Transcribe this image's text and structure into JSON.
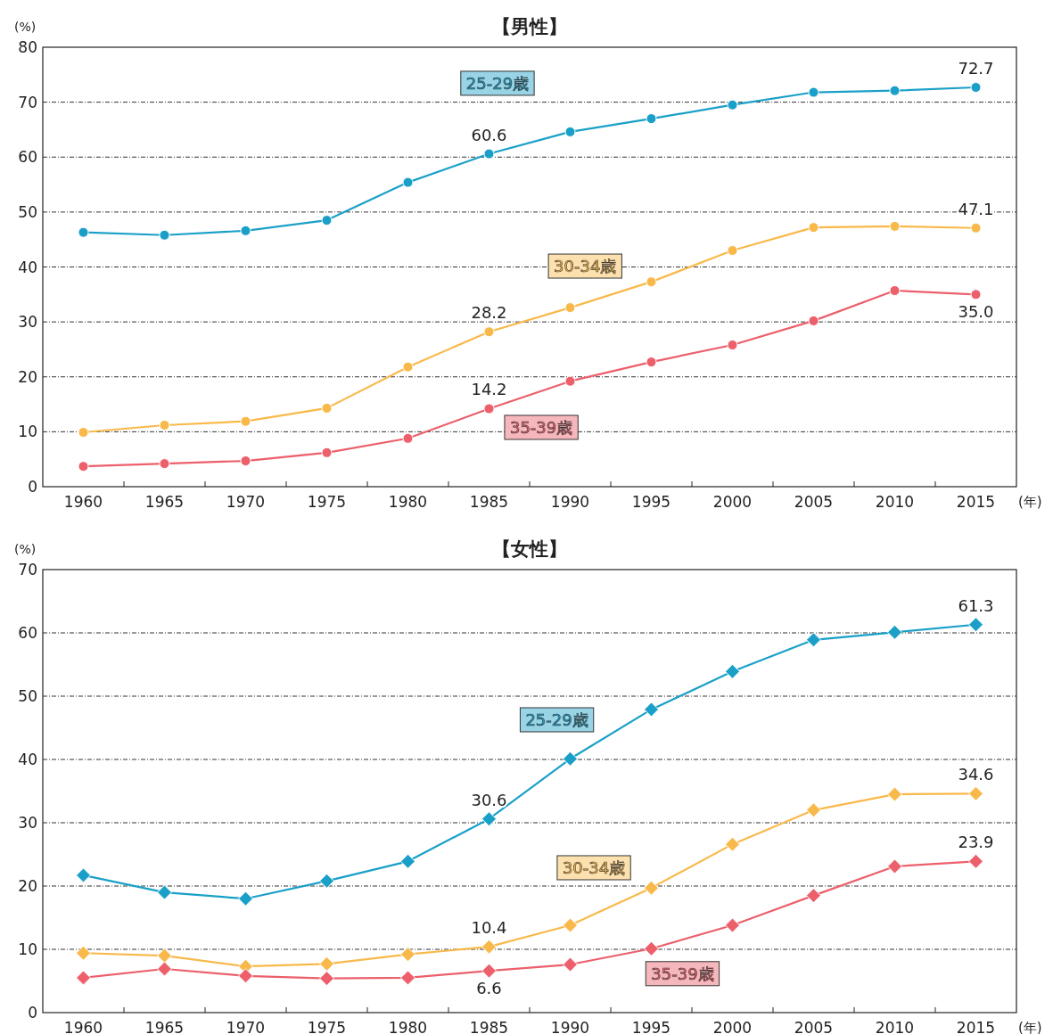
{
  "chart_data": [
    {
      "type": "line",
      "title": "【男性】",
      "ylabel": "(%)",
      "xlabel": "(年)",
      "categories": [
        "1960",
        "1965",
        "1970",
        "1975",
        "1980",
        "1985",
        "1990",
        "1995",
        "2000",
        "2005",
        "2010",
        "2015"
      ],
      "ylim": [
        0,
        80
      ],
      "yticks": [
        0,
        10,
        20,
        30,
        40,
        50,
        60,
        70,
        80
      ],
      "grid": "y",
      "marker": "circle",
      "series": [
        {
          "name": "25-29歳",
          "color": "#1aa0c8",
          "values": [
            46.3,
            45.8,
            46.6,
            48.5,
            55.4,
            60.6,
            64.6,
            67.0,
            69.5,
            71.8,
            72.1,
            72.7
          ],
          "value_labels": [
            null,
            null,
            null,
            null,
            null,
            "60.6",
            null,
            null,
            null,
            null,
            null,
            "72.7"
          ]
        },
        {
          "name": "30-34歳",
          "color": "#f9b94a",
          "values": [
            9.9,
            11.2,
            11.9,
            14.3,
            21.8,
            28.2,
            32.6,
            37.3,
            43.0,
            47.2,
            47.4,
            47.1
          ],
          "value_labels": [
            null,
            null,
            null,
            null,
            null,
            "28.2",
            null,
            null,
            null,
            null,
            null,
            "47.1"
          ]
        },
        {
          "name": "35-39歳",
          "color": "#ec5f6b",
          "values": [
            3.7,
            4.2,
            4.7,
            6.2,
            8.8,
            14.2,
            19.2,
            22.7,
            25.8,
            30.2,
            35.7,
            35.0
          ],
          "value_labels": [
            null,
            null,
            null,
            null,
            null,
            "14.2",
            null,
            null,
            null,
            null,
            null,
            "35.0"
          ]
        }
      ]
    },
    {
      "type": "line",
      "title": "【女性】",
      "ylabel": "(%)",
      "xlabel": "(年)",
      "categories": [
        "1960",
        "1965",
        "1970",
        "1975",
        "1980",
        "1985",
        "1990",
        "1995",
        "2000",
        "2005",
        "2010",
        "2015"
      ],
      "ylim": [
        0,
        70
      ],
      "yticks": [
        0,
        10,
        20,
        30,
        40,
        50,
        60,
        70
      ],
      "grid": "y",
      "marker": "diamond",
      "series": [
        {
          "name": "25-29歳",
          "color": "#1aa0c8",
          "values": [
            21.7,
            19.0,
            18.0,
            20.8,
            23.9,
            30.6,
            40.1,
            47.9,
            53.9,
            58.9,
            60.1,
            61.3
          ],
          "value_labels": [
            null,
            null,
            null,
            null,
            null,
            "30.6",
            null,
            null,
            null,
            null,
            null,
            "61.3"
          ]
        },
        {
          "name": "30-34歳",
          "color": "#f9b94a",
          "values": [
            9.4,
            9.0,
            7.3,
            7.7,
            9.2,
            10.4,
            13.8,
            19.7,
            26.6,
            32.0,
            34.5,
            34.6
          ],
          "value_labels": [
            null,
            null,
            null,
            null,
            null,
            "10.4",
            null,
            null,
            null,
            null,
            null,
            "34.6"
          ]
        },
        {
          "name": "35-39歳",
          "color": "#ec5f6b",
          "values": [
            5.5,
            6.9,
            5.8,
            5.4,
            5.5,
            6.6,
            7.6,
            10.1,
            13.8,
            18.5,
            23.1,
            23.9
          ],
          "value_labels": [
            null,
            null,
            null,
            null,
            null,
            "6.6",
            null,
            null,
            null,
            null,
            null,
            "23.9"
          ]
        }
      ]
    }
  ]
}
